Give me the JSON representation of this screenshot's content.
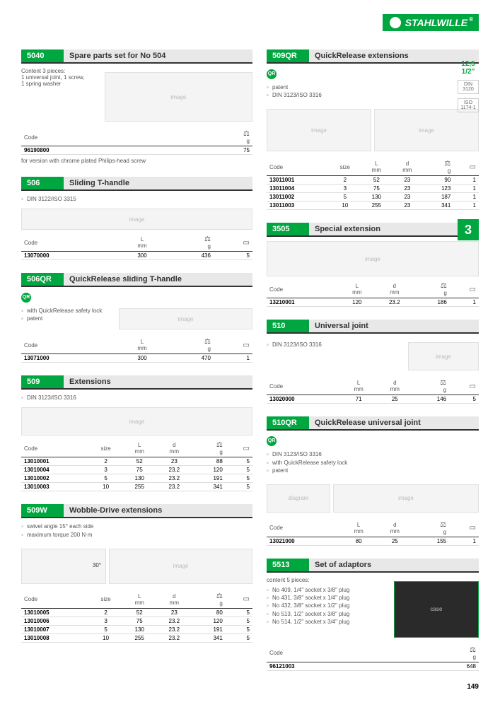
{
  "brand": "STAHLWILLE",
  "page_number": "149",
  "chapter": "3",
  "side": {
    "size_top": "12,5",
    "size_bot": "1/2\"",
    "spec1_top": "DIN",
    "spec1_bot": "3120",
    "spec2_top": "ISO",
    "spec2_bot": "1174-1"
  },
  "col_headers": {
    "code": "Code",
    "size": "size",
    "L": "L",
    "L_unit": "mm",
    "d": "d",
    "d_unit": "mm",
    "g": "g"
  },
  "s5040": {
    "num": "5040",
    "title": "Spare parts set for No 504",
    "content_line": "Content 3 pieces:",
    "content_items": "1 universal joint, 1 screw,\n1 spring washer",
    "row_code": "96190800",
    "row_g": "75",
    "footnote": "for version with chrome plated Philips-head screw"
  },
  "s506": {
    "num": "506",
    "title": "Sliding T-handle",
    "note1": "DIN 3122/ISO 3315",
    "r1_code": "13070000",
    "r1_L": "300",
    "r1_g": "436",
    "r1_q": "5"
  },
  "s506qr": {
    "num": "506QR",
    "title": "QuickRelease sliding T-handle",
    "note1": "with QuickRelease safety lock",
    "note2": "patent",
    "r1_code": "13071000",
    "r1_L": "300",
    "r1_g": "470",
    "r1_q": "1"
  },
  "s509": {
    "num": "509",
    "title": "Extensions",
    "note1": "DIN 3123/ISO 3316",
    "rows": [
      {
        "code": "13010001",
        "size": "2",
        "L": "52",
        "d": "23",
        "g": "88",
        "q": "5"
      },
      {
        "code": "13010004",
        "size": "3",
        "L": "75",
        "d": "23.2",
        "g": "120",
        "q": "5"
      },
      {
        "code": "13010002",
        "size": "5",
        "L": "130",
        "d": "23.2",
        "g": "191",
        "q": "5"
      },
      {
        "code": "13010003",
        "size": "10",
        "L": "255",
        "d": "23.2",
        "g": "341",
        "q": "5"
      }
    ]
  },
  "s509w": {
    "num": "509W",
    "title": "Wobble-Drive extensions",
    "note1": "swivel angle 15° each side",
    "note2": "maximum torque 200 N·m",
    "angle": "30°",
    "rows": [
      {
        "code": "13010005",
        "size": "2",
        "L": "52",
        "d": "23",
        "g": "80",
        "q": "5"
      },
      {
        "code": "13010006",
        "size": "3",
        "L": "75",
        "d": "23.2",
        "g": "120",
        "q": "5"
      },
      {
        "code": "13010007",
        "size": "5",
        "L": "130",
        "d": "23.2",
        "g": "191",
        "q": "5"
      },
      {
        "code": "13010008",
        "size": "10",
        "L": "255",
        "d": "23.2",
        "g": "341",
        "q": "5"
      }
    ]
  },
  "s509qr": {
    "num": "509QR",
    "title": "QuickRelease extensions",
    "note1": "patent",
    "note2": "DIN 3123/ISO 3316",
    "rows": [
      {
        "code": "13011001",
        "size": "2",
        "L": "52",
        "d": "23",
        "g": "90",
        "q": "1"
      },
      {
        "code": "13011004",
        "size": "3",
        "L": "75",
        "d": "23",
        "g": "123",
        "q": "1"
      },
      {
        "code": "13011002",
        "size": "5",
        "L": "130",
        "d": "23",
        "g": "187",
        "q": "1"
      },
      {
        "code": "13011003",
        "size": "10",
        "L": "255",
        "d": "23",
        "g": "341",
        "q": "1"
      }
    ]
  },
  "s3505": {
    "num": "3505",
    "title": "Special extension",
    "r1_code": "13210001",
    "r1_L": "120",
    "r1_d": "23.2",
    "r1_g": "186",
    "r1_q": "1"
  },
  "s510": {
    "num": "510",
    "title": "Universal joint",
    "note1": "DIN 3123/ISO 3316",
    "r1_code": "13020000",
    "r1_L": "71",
    "r1_d": "25",
    "r1_g": "146",
    "r1_q": "5"
  },
  "s510qr": {
    "num": "510QR",
    "title": "QuickRelease universal joint",
    "note1": "DIN 3123/ISO 3316",
    "note2": "with QuickRelease safety lock",
    "note3": "patent",
    "r1_code": "13021000",
    "r1_L": "80",
    "r1_d": "25",
    "r1_g": "155",
    "r1_q": "1"
  },
  "s5513": {
    "num": "5513",
    "title": "Set of adaptors",
    "content_line": "content 5 pieces:",
    "i1": "No 409, 1/4\" socket x 3/8\" plug",
    "i2": "No 431, 3/8\" socket x 1/4\" plug",
    "i3": "No 432, 3/8\" socket x 1/2\" plug",
    "i4": "No 513, 1/2\" socket x 3/8\" plug",
    "i5": "No 514, 1/2\" socket x 3/4\" plug",
    "r1_code": "96121003",
    "r1_g": "648"
  }
}
